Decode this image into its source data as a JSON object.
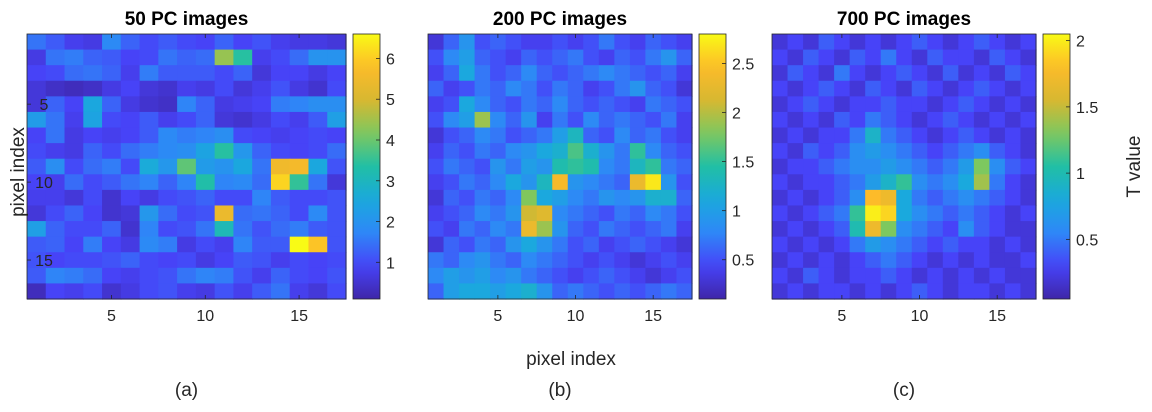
{
  "figure": {
    "shared_xlabel": "pixel index",
    "shared_ylabel": "pixel index",
    "colormap": "parula",
    "colormap_stops": [
      "#3e26a8",
      "#4743f8",
      "#2e87f7",
      "#1aa9dd",
      "#21bfa5",
      "#7dc85f",
      "#d7b831",
      "#fdbb29",
      "#f9fb15"
    ],
    "colorbar_label": "T value"
  },
  "chart_data": [
    {
      "type": "heatmap",
      "title": "50 PC images",
      "caption": "(a)",
      "x_ticks": [
        5,
        10,
        15
      ],
      "y_ticks": [
        5,
        10,
        15
      ],
      "xlim": [
        0.5,
        17.5
      ],
      "ylim": [
        0.5,
        17.5
      ],
      "color_range": [
        0.1,
        6.6
      ],
      "colorbar_ticks": [
        1,
        2,
        3,
        4,
        5,
        6
      ],
      "values": [
        [
          1.5,
          1.2,
          0.8,
          0.7,
          1.8,
          1.3,
          1.0,
          1.2,
          1.0,
          0.9,
          1.3,
          0.9,
          1.1,
          0.8,
          0.7,
          0.7,
          0.6
        ],
        [
          0.7,
          1.5,
          1.6,
          1.3,
          1.2,
          0.9,
          1.0,
          1.5,
          1.3,
          1.4,
          4.4,
          3.4,
          0.8,
          1.0,
          1.4,
          2.0,
          2.0
        ],
        [
          0.9,
          1.0,
          1.4,
          1.5,
          1.3,
          0.8,
          1.6,
          1.2,
          1.2,
          1.2,
          1.0,
          1.3,
          0.6,
          0.9,
          0.9,
          0.7,
          0.9
        ],
        [
          0.6,
          0.4,
          0.3,
          0.4,
          0.7,
          0.9,
          0.6,
          0.5,
          0.8,
          0.7,
          1.0,
          0.6,
          0.8,
          1.1,
          0.7,
          0.5,
          1.0
        ],
        [
          0.6,
          1.3,
          0.9,
          2.5,
          1.3,
          0.7,
          0.5,
          0.4,
          1.7,
          1.3,
          0.7,
          0.8,
          0.9,
          1.6,
          1.7,
          1.9,
          1.9
        ],
        [
          2.2,
          1.5,
          0.8,
          2.4,
          1.0,
          0.9,
          1.2,
          0.8,
          1.0,
          1.3,
          0.6,
          0.5,
          0.7,
          1.0,
          0.8,
          1.2,
          2.3
        ],
        [
          0.9,
          1.5,
          0.7,
          0.9,
          0.8,
          0.9,
          1.2,
          1.8,
          1.6,
          1.7,
          1.9,
          1.0,
          0.9,
          0.8,
          0.9,
          1.0,
          0.9
        ],
        [
          1.0,
          0.8,
          0.7,
          1.3,
          1.0,
          1.4,
          1.6,
          1.8,
          1.9,
          2.4,
          3.4,
          2.1,
          1.3,
          1.0,
          0.9,
          1.0,
          1.4
        ],
        [
          1.2,
          1.9,
          1.0,
          1.4,
          1.6,
          1.0,
          2.6,
          2.1,
          3.9,
          2.2,
          2.0,
          2.5,
          1.5,
          5.5,
          5.6,
          2.5,
          1.1
        ],
        [
          0.9,
          0.8,
          1.4,
          1.0,
          1.2,
          1.5,
          1.7,
          1.3,
          1.7,
          3.3,
          1.7,
          1.8,
          1.4,
          6.1,
          3.5,
          1.5,
          0.6
        ],
        [
          0.8,
          0.8,
          0.6,
          1.0,
          0.5,
          0.9,
          0.7,
          1.0,
          1.1,
          1.3,
          1.0,
          1.0,
          1.7,
          1.2,
          1.0,
          1.0,
          1.1
        ],
        [
          0.6,
          1.0,
          1.3,
          0.9,
          0.5,
          0.6,
          2.1,
          1.4,
          1.0,
          1.1,
          5.4,
          1.4,
          1.5,
          1.3,
          1.0,
          1.8,
          1.1
        ],
        [
          2.3,
          1.3,
          1.0,
          1.0,
          1.3,
          0.5,
          1.7,
          1.0,
          1.1,
          1.5,
          3.1,
          1.5,
          1.1,
          1.4,
          1.6,
          1.2,
          1.1
        ],
        [
          1.2,
          1.3,
          0.9,
          1.6,
          0.9,
          0.7,
          1.8,
          1.6,
          0.7,
          1.0,
          0.8,
          1.7,
          1.2,
          1.2,
          6.6,
          5.9,
          1.1
        ],
        [
          1.1,
          0.9,
          1.0,
          1.0,
          1.1,
          1.3,
          1.0,
          0.9,
          1.0,
          0.7,
          0.9,
          1.2,
          1.1,
          0.8,
          1.0,
          0.9,
          1.0
        ],
        [
          1.2,
          1.7,
          1.6,
          1.4,
          0.9,
          0.8,
          1.0,
          1.1,
          1.5,
          1.7,
          1.6,
          1.1,
          0.8,
          1.3,
          1.0,
          0.9,
          1.1
        ],
        [
          0.3,
          0.9,
          0.8,
          1.0,
          0.5,
          0.7,
          1.0,
          1.1,
          0.8,
          0.7,
          1.1,
          0.8,
          1.2,
          1.5,
          0.8,
          0.6,
          1.0
        ]
      ]
    },
    {
      "type": "heatmap",
      "title": "200 PC images",
      "caption": "(b)",
      "x_ticks": [
        5,
        10,
        15
      ],
      "y_ticks": [],
      "xlim": [
        0.5,
        17.5
      ],
      "ylim": [
        0.5,
        17.5
      ],
      "color_range": [
        0.1,
        2.8
      ],
      "colorbar_ticks": [
        0.5,
        1,
        1.5,
        2,
        2.5
      ],
      "values": [
        [
          0.3,
          0.6,
          0.9,
          0.5,
          0.6,
          0.5,
          0.4,
          0.4,
          0.5,
          0.4,
          0.5,
          0.7,
          0.5,
          0.4,
          0.6,
          0.5,
          0.4
        ],
        [
          0.5,
          0.8,
          1.0,
          0.6,
          0.5,
          0.4,
          0.6,
          0.5,
          0.6,
          0.7,
          0.5,
          0.4,
          0.6,
          0.5,
          0.7,
          0.9,
          0.6
        ],
        [
          0.4,
          0.6,
          1.1,
          0.7,
          0.5,
          0.6,
          0.8,
          0.6,
          0.5,
          0.6,
          0.7,
          0.8,
          0.7,
          0.6,
          0.5,
          0.6,
          0.4
        ],
        [
          0.6,
          0.4,
          0.5,
          0.7,
          0.6,
          0.8,
          0.7,
          0.5,
          0.7,
          0.6,
          0.4,
          0.5,
          0.7,
          0.9,
          0.6,
          0.5,
          0.3
        ],
        [
          0.4,
          0.5,
          1.1,
          0.8,
          0.6,
          0.5,
          0.7,
          0.6,
          0.8,
          0.6,
          0.5,
          0.6,
          0.5,
          0.4,
          0.7,
          0.6,
          0.5
        ],
        [
          0.5,
          0.8,
          1.0,
          1.9,
          0.8,
          0.6,
          0.9,
          0.4,
          0.7,
          0.5,
          0.8,
          0.6,
          0.7,
          0.6,
          0.5,
          0.7,
          0.4
        ],
        [
          0.3,
          0.5,
          0.6,
          0.8,
          0.7,
          0.5,
          0.6,
          0.7,
          1.0,
          1.3,
          0.6,
          0.5,
          0.8,
          0.6,
          0.7,
          0.5,
          0.4
        ],
        [
          0.4,
          0.6,
          0.5,
          0.7,
          0.6,
          0.8,
          0.9,
          1.1,
          1.2,
          1.6,
          1.2,
          0.9,
          0.7,
          1.5,
          0.8,
          0.6,
          0.5
        ],
        [
          0.5,
          0.7,
          0.6,
          0.5,
          0.9,
          0.7,
          1.0,
          0.9,
          1.4,
          1.5,
          1.4,
          0.8,
          0.7,
          1.3,
          1.5,
          0.7,
          0.6
        ],
        [
          0.4,
          0.5,
          0.7,
          0.6,
          0.8,
          1.1,
          0.9,
          1.3,
          2.4,
          0.9,
          0.8,
          0.7,
          0.6,
          2.3,
          2.7,
          0.9,
          0.5
        ],
        [
          0.3,
          0.6,
          0.5,
          0.7,
          0.6,
          0.8,
          1.8,
          1.1,
          1.0,
          0.8,
          0.7,
          0.9,
          0.8,
          0.9,
          1.2,
          1.2,
          0.6
        ],
        [
          0.4,
          0.5,
          0.6,
          0.8,
          0.7,
          0.9,
          2.1,
          2.2,
          0.8,
          0.7,
          0.6,
          0.5,
          0.7,
          0.6,
          0.8,
          0.7,
          0.5
        ],
        [
          0.5,
          0.4,
          0.7,
          0.6,
          0.8,
          0.7,
          2.3,
          1.9,
          0.9,
          0.6,
          0.5,
          0.7,
          0.6,
          0.5,
          0.6,
          0.7,
          0.4
        ],
        [
          0.3,
          0.6,
          0.5,
          0.7,
          0.6,
          0.9,
          1.1,
          0.9,
          0.7,
          0.5,
          0.6,
          0.4,
          0.5,
          0.6,
          0.5,
          0.4,
          0.3
        ],
        [
          0.7,
          0.6,
          0.8,
          0.9,
          0.7,
          0.6,
          0.8,
          0.7,
          0.6,
          0.5,
          0.4,
          0.5,
          0.4,
          0.3,
          0.4,
          0.5,
          0.4
        ],
        [
          0.8,
          1.0,
          0.9,
          1.0,
          0.8,
          0.9,
          0.7,
          0.6,
          0.5,
          0.4,
          0.5,
          0.6,
          0.5,
          0.4,
          0.3,
          0.4,
          0.5
        ],
        [
          0.6,
          1.0,
          1.1,
          1.1,
          1.0,
          1.1,
          1.2,
          0.9,
          0.6,
          0.7,
          0.6,
          0.5,
          0.6,
          0.5,
          0.6,
          0.7,
          0.6
        ]
      ]
    },
    {
      "type": "heatmap",
      "title": "700 PC images",
      "caption": "(c)",
      "x_ticks": [
        5,
        10,
        15
      ],
      "y_ticks": [],
      "xlim": [
        0.5,
        17.5
      ],
      "ylim": [
        0.5,
        17.5
      ],
      "color_range": [
        0.05,
        2.05
      ],
      "colorbar_ticks": [
        0.5,
        1,
        1.5,
        2
      ],
      "colorbar_label": "T value",
      "values": [
        [
          0.2,
          0.3,
          0.2,
          0.4,
          0.3,
          0.2,
          0.3,
          0.2,
          0.3,
          0.4,
          0.3,
          0.2,
          0.3,
          0.4,
          0.3,
          0.2,
          0.3
        ],
        [
          0.3,
          0.2,
          0.4,
          0.3,
          0.2,
          0.4,
          0.3,
          0.5,
          0.3,
          0.2,
          0.4,
          0.3,
          0.3,
          0.2,
          0.4,
          0.3,
          0.2
        ],
        [
          0.2,
          0.4,
          0.3,
          0.2,
          0.5,
          0.3,
          0.2,
          0.3,
          0.4,
          0.3,
          0.2,
          0.4,
          0.2,
          0.3,
          0.2,
          0.4,
          0.3
        ],
        [
          0.3,
          0.2,
          0.3,
          0.4,
          0.3,
          0.2,
          0.4,
          0.3,
          0.2,
          0.4,
          0.3,
          0.2,
          0.3,
          0.4,
          0.3,
          0.2,
          0.3
        ],
        [
          0.2,
          0.3,
          0.4,
          0.3,
          0.2,
          0.3,
          0.3,
          0.4,
          0.3,
          0.3,
          0.2,
          0.3,
          0.4,
          0.3,
          0.2,
          0.3,
          0.2
        ],
        [
          0.3,
          0.2,
          0.3,
          0.2,
          0.4,
          0.3,
          0.5,
          0.4,
          0.3,
          0.2,
          0.3,
          0.4,
          0.3,
          0.2,
          0.3,
          0.2,
          0.3
        ],
        [
          0.2,
          0.3,
          0.2,
          0.3,
          0.3,
          0.5,
          0.9,
          0.5,
          0.4,
          0.3,
          0.2,
          0.3,
          0.4,
          0.3,
          0.2,
          0.3,
          0.2
        ],
        [
          0.3,
          0.2,
          0.4,
          0.3,
          0.4,
          0.6,
          0.7,
          0.6,
          0.5,
          0.4,
          0.3,
          0.4,
          0.5,
          0.6,
          0.4,
          0.3,
          0.2
        ],
        [
          0.2,
          0.3,
          0.3,
          0.4,
          0.5,
          0.6,
          0.6,
          0.7,
          0.6,
          0.5,
          0.4,
          0.5,
          0.7,
          1.3,
          0.6,
          0.4,
          0.3
        ],
        [
          0.3,
          0.2,
          0.3,
          0.3,
          0.4,
          0.5,
          0.7,
          0.9,
          1.1,
          0.6,
          0.5,
          0.6,
          0.8,
          1.4,
          0.5,
          0.3,
          0.2
        ],
        [
          0.2,
          0.3,
          0.2,
          0.3,
          0.4,
          0.6,
          1.8,
          1.7,
          0.8,
          0.5,
          0.4,
          0.5,
          0.6,
          0.5,
          0.4,
          0.3,
          0.2
        ],
        [
          0.3,
          0.2,
          0.3,
          0.4,
          0.5,
          1.1,
          2.0,
          1.9,
          0.8,
          0.6,
          0.5,
          0.4,
          0.5,
          0.4,
          0.3,
          0.2,
          0.3
        ],
        [
          0.2,
          0.3,
          0.2,
          0.3,
          0.4,
          1.0,
          1.7,
          1.3,
          0.6,
          0.5,
          0.4,
          0.3,
          0.6,
          0.4,
          0.3,
          0.2,
          0.2
        ],
        [
          0.3,
          0.2,
          0.3,
          0.2,
          0.3,
          0.5,
          0.7,
          0.6,
          0.5,
          0.4,
          0.3,
          0.4,
          0.3,
          0.3,
          0.2,
          0.3,
          0.2
        ],
        [
          0.2,
          0.3,
          0.2,
          0.3,
          0.2,
          0.3,
          0.4,
          0.5,
          0.4,
          0.3,
          0.2,
          0.3,
          0.2,
          0.3,
          0.2,
          0.2,
          0.3
        ],
        [
          0.3,
          0.2,
          0.4,
          0.3,
          0.2,
          0.3,
          0.3,
          0.4,
          0.3,
          0.2,
          0.3,
          0.2,
          0.3,
          0.2,
          0.3,
          0.2,
          0.2
        ],
        [
          0.2,
          0.3,
          0.2,
          0.3,
          0.3,
          0.2,
          0.3,
          0.2,
          0.3,
          0.4,
          0.3,
          0.2,
          0.3,
          0.3,
          0.2,
          0.3,
          0.2
        ]
      ]
    }
  ]
}
